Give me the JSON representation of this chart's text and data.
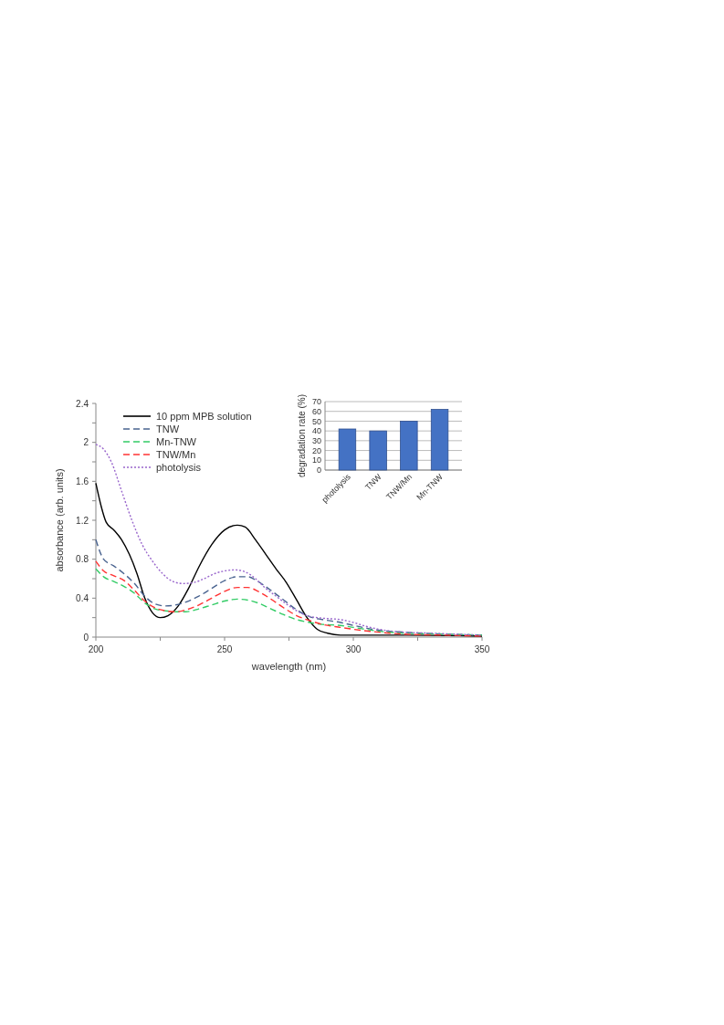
{
  "chart_data": [
    {
      "type": "line",
      "xlabel": "wavelength (nm)",
      "ylabel": "absorbance (arb. units)",
      "xlim": [
        200,
        350
      ],
      "xticks": [
        200,
        {
          "value": 225,
          "label": null
        },
        250,
        {
          "value": 275,
          "label": null
        },
        300,
        {
          "value": 325,
          "label": null
        },
        350
      ],
      "ylim": [
        0,
        2.4
      ],
      "yticks": [
        0,
        {
          "value": 0.2,
          "label": null
        },
        0.4,
        {
          "value": 0.6,
          "label": null
        },
        0.8,
        {
          "value": 1.0,
          "label": null
        },
        1.2,
        {
          "value": 1.4,
          "label": null
        },
        1.6,
        {
          "value": 1.8,
          "label": null
        },
        2,
        {
          "value": 2.2,
          "label": null
        },
        2.4
      ],
      "legend": "top left",
      "grid": false,
      "series": [
        {
          "name": "10 ppm MPB solution",
          "color": "#000000",
          "line_style": "solid",
          "x": [
            200,
            202,
            204,
            207,
            210,
            213,
            216,
            219,
            222,
            225,
            228,
            232,
            236,
            240,
            245,
            250,
            255,
            258,
            262,
            266,
            270,
            274,
            278,
            282,
            286,
            290,
            295,
            300,
            320,
            350
          ],
          "values": [
            1.58,
            1.35,
            1.18,
            1.1,
            1.0,
            0.85,
            0.65,
            0.4,
            0.25,
            0.2,
            0.22,
            0.32,
            0.5,
            0.72,
            0.95,
            1.1,
            1.15,
            1.13,
            1.0,
            0.85,
            0.7,
            0.56,
            0.38,
            0.2,
            0.08,
            0.04,
            0.02,
            0.02,
            0.02,
            0.01
          ]
        },
        {
          "name": "TNW",
          "color": "#4a6490",
          "line_style": "dashed",
          "x": [
            200,
            203,
            207,
            211,
            215,
            219,
            223,
            227,
            231,
            235,
            240,
            245,
            250,
            255,
            259,
            263,
            268,
            273,
            278,
            283,
            288,
            295,
            300,
            310,
            320,
            335,
            350
          ],
          "values": [
            1.0,
            0.8,
            0.73,
            0.65,
            0.55,
            0.42,
            0.34,
            0.32,
            0.33,
            0.36,
            0.42,
            0.5,
            0.58,
            0.62,
            0.62,
            0.57,
            0.48,
            0.38,
            0.28,
            0.21,
            0.18,
            0.15,
            0.12,
            0.07,
            0.05,
            0.03,
            0.02
          ]
        },
        {
          "name": "Mn-TNW",
          "color": "#33cc66",
          "line_style": "dashed",
          "x": [
            200,
            203,
            207,
            211,
            215,
            219,
            223,
            227,
            231,
            235,
            240,
            245,
            250,
            255,
            259,
            263,
            268,
            273,
            278,
            283,
            288,
            295,
            300,
            310,
            320,
            335,
            350
          ],
          "values": [
            0.7,
            0.62,
            0.57,
            0.52,
            0.45,
            0.35,
            0.29,
            0.27,
            0.26,
            0.26,
            0.29,
            0.33,
            0.37,
            0.39,
            0.38,
            0.35,
            0.29,
            0.23,
            0.18,
            0.15,
            0.13,
            0.12,
            0.1,
            0.06,
            0.04,
            0.03,
            0.02
          ]
        },
        {
          "name": "TNW/Mn",
          "color": "#ff3333",
          "line_style": "dashed",
          "x": [
            200,
            203,
            207,
            211,
            215,
            219,
            223,
            227,
            231,
            235,
            240,
            245,
            250,
            255,
            259,
            263,
            268,
            273,
            278,
            283,
            288,
            295,
            300,
            310,
            320,
            335,
            350
          ],
          "values": [
            0.78,
            0.68,
            0.63,
            0.58,
            0.48,
            0.37,
            0.3,
            0.27,
            0.26,
            0.28,
            0.33,
            0.4,
            0.47,
            0.51,
            0.51,
            0.47,
            0.39,
            0.3,
            0.22,
            0.17,
            0.13,
            0.1,
            0.08,
            0.05,
            0.03,
            0.02,
            0.01
          ]
        },
        {
          "name": "photolysis",
          "color": "#9966cc",
          "line_style": "dotted",
          "x": [
            200,
            203,
            206,
            210,
            214,
            218,
            222,
            226,
            230,
            234,
            238,
            242,
            246,
            250,
            254,
            258,
            262,
            266,
            270,
            274,
            278,
            282,
            286,
            290,
            295,
            300,
            305,
            310,
            320,
            330,
            340,
            350
          ],
          "values": [
            1.98,
            1.93,
            1.8,
            1.5,
            1.2,
            0.95,
            0.78,
            0.65,
            0.57,
            0.55,
            0.56,
            0.6,
            0.65,
            0.68,
            0.69,
            0.67,
            0.6,
            0.5,
            0.42,
            0.34,
            0.27,
            0.22,
            0.2,
            0.19,
            0.18,
            0.15,
            0.11,
            0.08,
            0.05,
            0.04,
            0.03,
            0.02
          ]
        }
      ]
    },
    {
      "type": "bar",
      "ylabel": "degradation rate (%)",
      "categories": [
        "photolysis",
        "TNW",
        "TNW/Mn",
        "Mn-TNW"
      ],
      "values": [
        42,
        40,
        50,
        62
      ],
      "color": "#4472c4",
      "ylim": [
        0,
        70
      ],
      "yticks": [
        0,
        10,
        20,
        30,
        40,
        50,
        60,
        70
      ],
      "grid": "y"
    }
  ]
}
